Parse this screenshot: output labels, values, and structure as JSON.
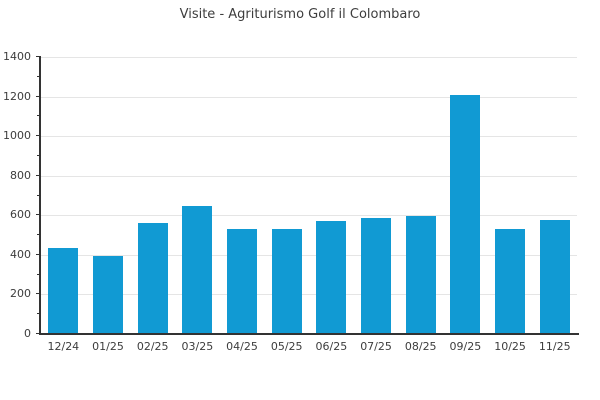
{
  "title": "Visite - Agriturismo Golf il Colombaro",
  "colors": {
    "bar": "#119ad3",
    "axis": "#333333",
    "grid": "#e5e5e5",
    "text": "#3d3d3d",
    "background": "#ffffff"
  },
  "chart_data": {
    "type": "bar",
    "title": "Visite - Agriturismo Golf il Colombaro",
    "categories": [
      "12/24",
      "01/25",
      "02/25",
      "03/25",
      "04/25",
      "05/25",
      "06/25",
      "07/25",
      "08/25",
      "09/25",
      "10/25",
      "11/25"
    ],
    "values": [
      435,
      395,
      560,
      645,
      530,
      530,
      570,
      585,
      595,
      1210,
      530,
      575
    ],
    "xlabel": "",
    "ylabel": "",
    "ylim": [
      0,
      1400
    ],
    "ytick_step": 200,
    "yticks": [
      0,
      200,
      400,
      600,
      800,
      1000,
      1200,
      1400
    ],
    "minor_tick_step": 100,
    "grid": "horizontal",
    "legend": "none",
    "bar_color": "#119ad3"
  }
}
